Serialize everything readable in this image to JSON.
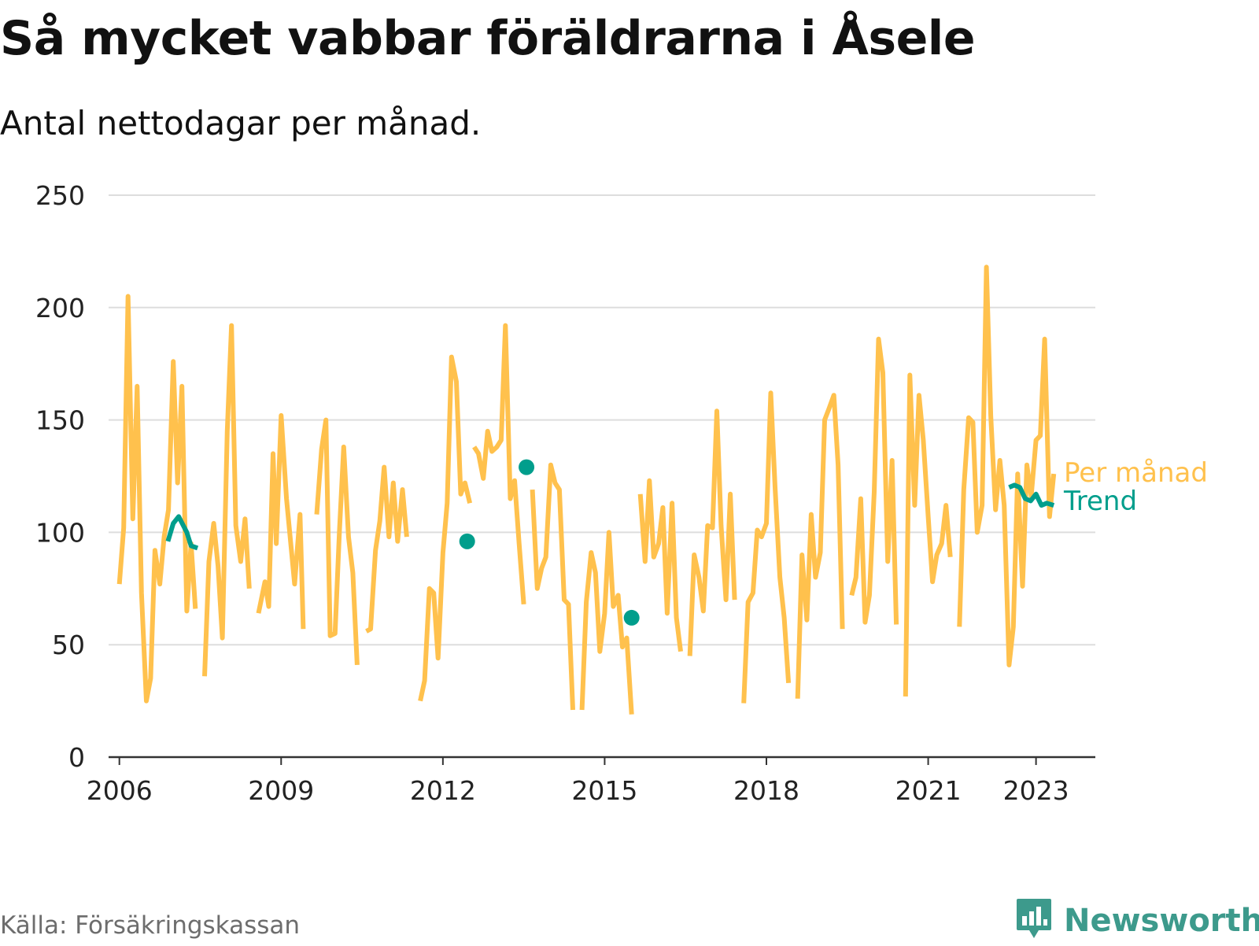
{
  "title": "Så mycket vabbar föräldrarna i Åsele",
  "subtitle": "Antal nettodagar per månad.",
  "source": "Källa: Försäkringskassan",
  "brand": {
    "name": "Newsworthy",
    "icon": "newsworthy-logo-icon",
    "color": "#3d9a8c"
  },
  "colors": {
    "monthly": "#ffc14d",
    "trend": "#009e8c",
    "grid": "#dddddd",
    "axis": "#333333"
  },
  "chart_data": {
    "type": "line",
    "title": "Så mycket vabbar föräldrarna i Åsele",
    "subtitle": "Antal nettodagar per månad.",
    "xlabel": "",
    "ylabel": "",
    "xlim": [
      2005.8,
      2024.1
    ],
    "ylim": [
      0,
      250
    ],
    "yticks": [
      0,
      50,
      100,
      150,
      200,
      250
    ],
    "xticks": [
      2006,
      2009,
      2012,
      2015,
      2018,
      2021,
      2023
    ],
    "grid": true,
    "legend": "right, inline labels",
    "series": [
      {
        "name": "Per månad",
        "color": "#ffc14d",
        "segments": [
          [
            [
              2006.0,
              77
            ],
            [
              2006.08,
              102
            ],
            [
              2006.16,
              205
            ],
            [
              2006.25,
              106
            ],
            [
              2006.33,
              165
            ],
            [
              2006.41,
              73
            ],
            [
              2006.5,
              25
            ],
            [
              2006.58,
              35
            ],
            [
              2006.66,
              92
            ],
            [
              2006.75,
              77
            ],
            [
              2006.83,
              98
            ],
            [
              2006.91,
              110
            ],
            [
              2007.0,
              176
            ],
            [
              2007.08,
              122
            ],
            [
              2007.16,
              165
            ],
            [
              2007.25,
              65
            ],
            [
              2007.33,
              95
            ],
            [
              2007.41,
              66
            ]
          ],
          [
            [
              2007.58,
              36
            ],
            [
              2007.66,
              87
            ],
            [
              2007.75,
              104
            ],
            [
              2007.83,
              85
            ],
            [
              2007.91,
              53
            ],
            [
              2008.0,
              145
            ],
            [
              2008.08,
              192
            ],
            [
              2008.16,
              103
            ],
            [
              2008.25,
              87
            ],
            [
              2008.33,
              106
            ],
            [
              2008.41,
              75
            ]
          ],
          [
            [
              2008.58,
              64
            ],
            [
              2008.7,
              78
            ],
            [
              2008.77,
              67
            ],
            [
              2008.85,
              135
            ],
            [
              2008.91,
              95
            ],
            [
              2009.0,
              152
            ],
            [
              2009.1,
              115
            ],
            [
              2009.25,
              77
            ],
            [
              2009.35,
              108
            ],
            [
              2009.41,
              57
            ]
          ],
          [
            [
              2009.66,
              108
            ],
            [
              2009.75,
              137
            ],
            [
              2009.83,
              150
            ],
            [
              2009.91,
              54
            ],
            [
              2010.0,
              55
            ],
            [
              2010.08,
              100
            ],
            [
              2010.16,
              138
            ],
            [
              2010.25,
              98
            ],
            [
              2010.33,
              82
            ],
            [
              2010.41,
              41
            ]
          ],
          [
            [
              2010.58,
              56
            ],
            [
              2010.66,
              57
            ],
            [
              2010.75,
              92
            ],
            [
              2010.83,
              105
            ],
            [
              2010.91,
              129
            ],
            [
              2011.0,
              98
            ],
            [
              2011.08,
              122
            ],
            [
              2011.16,
              96
            ],
            [
              2011.25,
              119
            ],
            [
              2011.33,
              98
            ]
          ],
          [
            [
              2011.58,
              25
            ],
            [
              2011.66,
              34
            ],
            [
              2011.75,
              75
            ],
            [
              2011.83,
              73
            ],
            [
              2011.91,
              44
            ],
            [
              2012.0,
              91
            ],
            [
              2012.08,
              113
            ],
            [
              2012.16,
              178
            ],
            [
              2012.25,
              167
            ],
            [
              2012.33,
              117
            ],
            [
              2012.41,
              122
            ],
            [
              2012.5,
              113
            ]
          ],
          [
            [
              2012.58,
              138
            ],
            [
              2012.66,
              135
            ],
            [
              2012.75,
              124
            ],
            [
              2012.83,
              145
            ],
            [
              2012.91,
              136
            ],
            [
              2013.0,
              138
            ],
            [
              2013.08,
              141
            ],
            [
              2013.16,
              192
            ],
            [
              2013.25,
              115
            ],
            [
              2013.33,
              123
            ],
            [
              2013.41,
              96
            ],
            [
              2013.5,
              68
            ]
          ],
          [
            [
              2013.66,
              119
            ],
            [
              2013.75,
              75
            ],
            [
              2013.83,
              84
            ],
            [
              2013.91,
              89
            ],
            [
              2014.0,
              130
            ],
            [
              2014.08,
              122
            ],
            [
              2014.16,
              119
            ],
            [
              2014.25,
              70
            ],
            [
              2014.33,
              68
            ],
            [
              2014.41,
              21
            ]
          ],
          [
            [
              2014.58,
              21
            ],
            [
              2014.66,
              69
            ],
            [
              2014.75,
              91
            ],
            [
              2014.83,
              82
            ],
            [
              2014.91,
              47
            ],
            [
              2015.0,
              64
            ],
            [
              2015.08,
              100
            ],
            [
              2015.16,
              67
            ],
            [
              2015.25,
              72
            ],
            [
              2015.33,
              49
            ],
            [
              2015.41,
              53
            ],
            [
              2015.5,
              19
            ]
          ],
          [
            [
              2015.66,
              117
            ],
            [
              2015.75,
              87
            ],
            [
              2015.83,
              123
            ],
            [
              2015.91,
              89
            ],
            [
              2016.0,
              95
            ],
            [
              2016.08,
              111
            ],
            [
              2016.16,
              64
            ],
            [
              2016.25,
              113
            ],
            [
              2016.33,
              62
            ],
            [
              2016.41,
              47
            ]
          ],
          [
            [
              2016.58,
              45
            ],
            [
              2016.66,
              90
            ],
            [
              2016.75,
              80
            ],
            [
              2016.83,
              65
            ],
            [
              2016.91,
              103
            ],
            [
              2017.0,
              102
            ],
            [
              2017.08,
              154
            ],
            [
              2017.16,
              103
            ],
            [
              2017.25,
              70
            ],
            [
              2017.33,
              117
            ],
            [
              2017.41,
              70
            ]
          ],
          [
            [
              2017.58,
              24
            ],
            [
              2017.66,
              69
            ],
            [
              2017.75,
              73
            ],
            [
              2017.83,
              101
            ],
            [
              2017.91,
              98
            ],
            [
              2018.0,
              104
            ],
            [
              2018.08,
              162
            ],
            [
              2018.16,
              120
            ],
            [
              2018.25,
              80
            ],
            [
              2018.33,
              62
            ],
            [
              2018.41,
              33
            ]
          ],
          [
            [
              2018.58,
              26
            ],
            [
              2018.66,
              90
            ],
            [
              2018.75,
              61
            ],
            [
              2018.83,
              108
            ],
            [
              2018.91,
              80
            ],
            [
              2019.0,
              91
            ],
            [
              2019.08,
              150
            ],
            [
              2019.16,
              155
            ],
            [
              2019.25,
              161
            ],
            [
              2019.33,
              130
            ],
            [
              2019.41,
              57
            ]
          ],
          [
            [
              2019.58,
              72
            ],
            [
              2019.66,
              80
            ],
            [
              2019.75,
              115
            ],
            [
              2019.83,
              60
            ],
            [
              2019.91,
              72
            ],
            [
              2020.0,
              118
            ],
            [
              2020.08,
              186
            ],
            [
              2020.16,
              171
            ],
            [
              2020.25,
              87
            ],
            [
              2020.33,
              132
            ],
            [
              2020.41,
              59
            ]
          ],
          [
            [
              2020.58,
              27
            ],
            [
              2020.66,
              170
            ],
            [
              2020.75,
              112
            ],
            [
              2020.83,
              161
            ],
            [
              2020.91,
              141
            ],
            [
              2021.0,
              107
            ],
            [
              2021.08,
              78
            ],
            [
              2021.16,
              90
            ],
            [
              2021.25,
              95
            ],
            [
              2021.33,
              112
            ],
            [
              2021.41,
              89
            ]
          ],
          [
            [
              2021.58,
              58
            ],
            [
              2021.66,
              119
            ],
            [
              2021.75,
              151
            ],
            [
              2021.83,
              149
            ],
            [
              2021.91,
              100
            ],
            [
              2022.0,
              112
            ],
            [
              2022.08,
              218
            ],
            [
              2022.16,
              152
            ],
            [
              2022.25,
              110
            ],
            [
              2022.33,
              132
            ],
            [
              2022.41,
              112
            ],
            [
              2022.5,
              41
            ],
            [
              2022.58,
              58
            ],
            [
              2022.66,
              126
            ],
            [
              2022.75,
              76
            ],
            [
              2022.83,
              130
            ],
            [
              2022.91,
              116
            ],
            [
              2023.0,
              141
            ],
            [
              2023.08,
              143
            ],
            [
              2023.16,
              186
            ],
            [
              2023.25,
              107
            ],
            [
              2023.33,
              126
            ]
          ]
        ]
      },
      {
        "name": "Trend",
        "color": "#009e8c",
        "segments": [
          [
            [
              2006.9,
              96
            ],
            [
              2007.0,
              104
            ],
            [
              2007.1,
              107
            ],
            [
              2007.25,
              100
            ],
            [
              2007.33,
              94
            ],
            [
              2007.45,
              93
            ]
          ],
          [
            [
              2022.5,
              120
            ],
            [
              2022.6,
              121
            ],
            [
              2022.7,
              120
            ],
            [
              2022.8,
              115
            ],
            [
              2022.9,
              114
            ],
            [
              2023.0,
              117
            ],
            [
              2023.1,
              112
            ],
            [
              2023.2,
              113
            ],
            [
              2023.33,
              112
            ]
          ]
        ],
        "points": [
          [
            2012.45,
            96
          ],
          [
            2013.55,
            129
          ],
          [
            2015.5,
            62
          ]
        ]
      }
    ]
  }
}
